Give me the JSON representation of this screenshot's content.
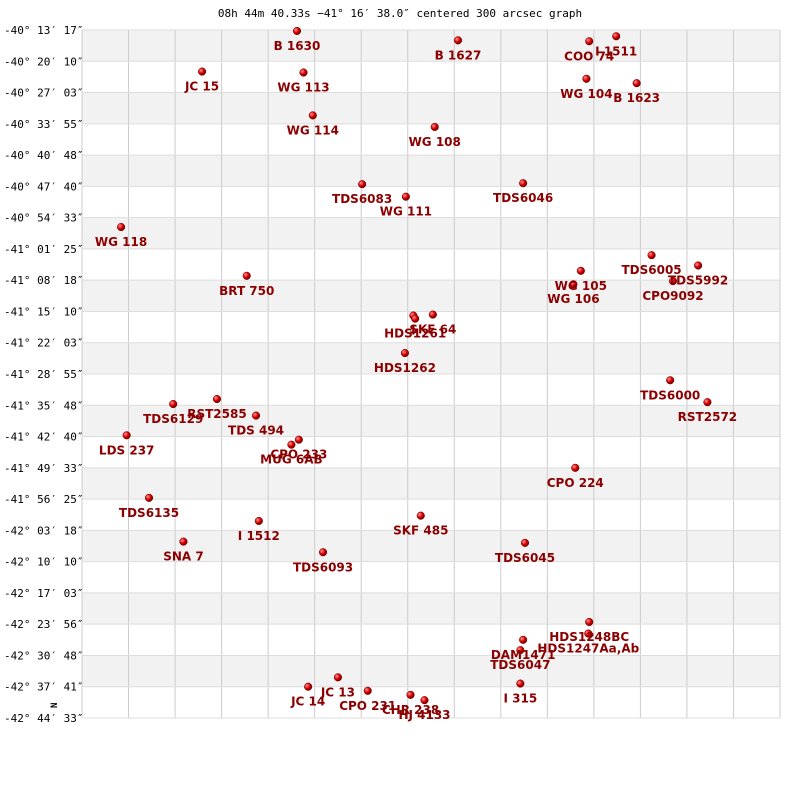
{
  "chart_data": {
    "type": "scatter",
    "title": "08h 44m 40.33s −41° 16′ 38.0″ centered 300 arcsec graph",
    "north_label": "N",
    "y_tick_labels": [
      "-40° 13′ 17″",
      "-40° 20′ 10″",
      "-40° 27′ 03″",
      "-40° 33′ 55″",
      "-40° 40′ 48″",
      "-40° 47′ 40″",
      "-40° 54′ 33″",
      "-41° 01′ 25″",
      "-41° 08′ 18″",
      "-41° 15′ 10″",
      "-41° 22′ 03″",
      "-41° 28′ 55″",
      "-41° 35′ 48″",
      "-41° 42′ 40″",
      "-41° 49′ 33″",
      "-41° 56′ 25″",
      "-42° 03′ 18″",
      "-42° 10′ 10″",
      "-42° 17′ 03″",
      "-42° 23′ 56″",
      "-42° 30′ 48″",
      "-42° 37′ 41″",
      "-42° 44′ 33″"
    ],
    "x_grid_count": 15,
    "x_range": [
      0,
      15
    ],
    "y_range": [
      0,
      22
    ],
    "colors": {
      "star": "#cc0000",
      "label": "#8b0000",
      "band": "#f2f2f2",
      "grid": "#cccccc"
    },
    "stars": [
      {
        "name": "B  1630",
        "x": 4.62,
        "y": 0.03
      },
      {
        "name": "B  1627",
        "x": 8.08,
        "y": 0.33
      },
      {
        "name": "COO  74",
        "x": 10.9,
        "y": 0.36
      },
      {
        "name": "I 1511",
        "x": 11.48,
        "y": 0.2
      },
      {
        "name": "JC   15",
        "x": 2.58,
        "y": 1.33
      },
      {
        "name": "WG  113",
        "x": 4.76,
        "y": 1.36
      },
      {
        "name": "WG  104",
        "x": 10.84,
        "y": 1.56
      },
      {
        "name": "B  1623",
        "x": 11.92,
        "y": 1.7
      },
      {
        "name": "WG  114",
        "x": 4.96,
        "y": 2.73
      },
      {
        "name": "WG  108",
        "x": 7.58,
        "y": 3.1
      },
      {
        "name": "TDS6083",
        "x": 6.02,
        "y": 4.93
      },
      {
        "name": "TDS6046",
        "x": 9.48,
        "y": 4.9
      },
      {
        "name": "WG  111",
        "x": 6.96,
        "y": 5.33
      },
      {
        "name": "WG  118",
        "x": 0.84,
        "y": 6.3
      },
      {
        "name": "TDS6005",
        "x": 12.24,
        "y": 7.2
      },
      {
        "name": "TDS5992",
        "x": 13.24,
        "y": 7.53
      },
      {
        "name": "WG  105",
        "x": 10.72,
        "y": 7.7
      },
      {
        "name": "CPO9092",
        "x": 12.7,
        "y": 8.03
      },
      {
        "name": "BRT 750",
        "x": 3.54,
        "y": 7.86
      },
      {
        "name": "WG  106",
        "x": 10.56,
        "y": 8.13
      },
      {
        "name": "SKF  64",
        "x": 7.54,
        "y": 9.1
      },
      {
        "name": "I",
        "x": 7.12,
        "y": 9.13
      },
      {
        "name": "HDS1261",
        "x": 7.16,
        "y": 9.23
      },
      {
        "name": "HDS1262",
        "x": 6.94,
        "y": 10.33
      },
      {
        "name": "TDS6000",
        "x": 12.64,
        "y": 11.2
      },
      {
        "name": "RST2572",
        "x": 13.44,
        "y": 11.9
      },
      {
        "name": "TDS6129",
        "x": 1.96,
        "y": 11.96
      },
      {
        "name": "RST2585",
        "x": 2.9,
        "y": 11.8
      },
      {
        "name": "TDS 494",
        "x": 3.74,
        "y": 12.33
      },
      {
        "name": "LDS 237",
        "x": 0.96,
        "y": 12.96
      },
      {
        "name": "CPO 233",
        "x": 4.66,
        "y": 13.1
      },
      {
        "name": "MUG   6AB",
        "x": 4.5,
        "y": 13.26
      },
      {
        "name": "CPO 224",
        "x": 10.6,
        "y": 14.0
      },
      {
        "name": "TDS6135",
        "x": 1.44,
        "y": 14.96
      },
      {
        "name": "I  1512",
        "x": 3.8,
        "y": 15.7
      },
      {
        "name": "SKF 485",
        "x": 7.28,
        "y": 15.53
      },
      {
        "name": "SNA   7",
        "x": 2.18,
        "y": 16.36
      },
      {
        "name": "TDS6045",
        "x": 9.52,
        "y": 16.4
      },
      {
        "name": "TDS6093",
        "x": 5.18,
        "y": 16.7
      },
      {
        "name": "HDS1248BC",
        "x": 10.9,
        "y": 18.93
      },
      {
        "name": "HDS1247Aa,Ab",
        "x": 10.88,
        "y": 19.3
      },
      {
        "name": "DAM1471",
        "x": 9.48,
        "y": 19.5
      },
      {
        "name": "TDS6047",
        "x": 9.42,
        "y": 19.83
      },
      {
        "name": "I   315",
        "x": 9.42,
        "y": 20.9
      },
      {
        "name": "JC   13",
        "x": 5.5,
        "y": 20.7
      },
      {
        "name": "JC   14",
        "x": 4.86,
        "y": 21.0
      },
      {
        "name": "CPO 231",
        "x": 6.14,
        "y": 21.13
      },
      {
        "name": "CHR 238",
        "x": 7.06,
        "y": 21.26
      },
      {
        "name": "HJ 4133",
        "x": 7.36,
        "y": 21.43
      }
    ]
  }
}
